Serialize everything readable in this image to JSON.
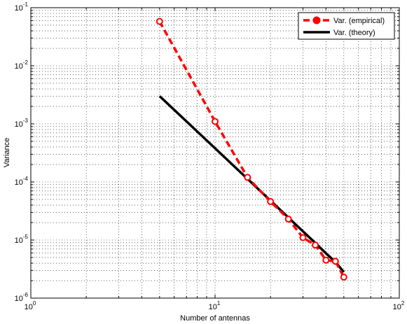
{
  "chart_data": {
    "type": "line",
    "xscale": "log",
    "yscale": "log",
    "xlim": [
      1,
      100
    ],
    "ylim": [
      1e-06,
      0.1
    ],
    "grid": "major and minor (dotted)",
    "legend_position": "top-right",
    "xlabel": "Number of antennas",
    "ylabel": "Variance",
    "x_ticks": [
      {
        "base": "10",
        "exp": "0",
        "value": 1
      },
      {
        "base": "10",
        "exp": "1",
        "value": 10
      },
      {
        "base": "10",
        "exp": "2",
        "value": 100
      }
    ],
    "y_ticks": [
      {
        "base": "10",
        "exp": "-6",
        "value": 1e-06
      },
      {
        "base": "10",
        "exp": "-5",
        "value": 1e-05
      },
      {
        "base": "10",
        "exp": "-4",
        "value": 0.0001
      },
      {
        "base": "10",
        "exp": "-3",
        "value": 0.001
      },
      {
        "base": "10",
        "exp": "-2",
        "value": 0.01
      },
      {
        "base": "10",
        "exp": "-1",
        "value": 0.1
      }
    ],
    "series": [
      {
        "name": "Var. (empirical)",
        "color": "#ff0000",
        "line_style": "dashed",
        "marker": "circle",
        "x": [
          5,
          10,
          15,
          20,
          25,
          30,
          35,
          40,
          45,
          50
        ],
        "y": [
          0.058,
          0.0011,
          0.00012,
          4.6e-05,
          2.3e-05,
          1.1e-05,
          8.2e-06,
          4.5e-06,
          4.3e-06,
          2.3e-06
        ]
      },
      {
        "name": "Var. (theory)",
        "color": "#000000",
        "line_style": "solid",
        "marker": "none",
        "x": [
          5,
          10,
          15,
          20,
          25,
          30,
          35,
          40,
          45,
          50
        ],
        "y": [
          0.003,
          0.00038,
          0.000113,
          4.76e-05,
          2.44e-05,
          1.41e-05,
          8.9e-06,
          5.9e-06,
          4.2e-06,
          2.8e-06
        ]
      }
    ]
  }
}
